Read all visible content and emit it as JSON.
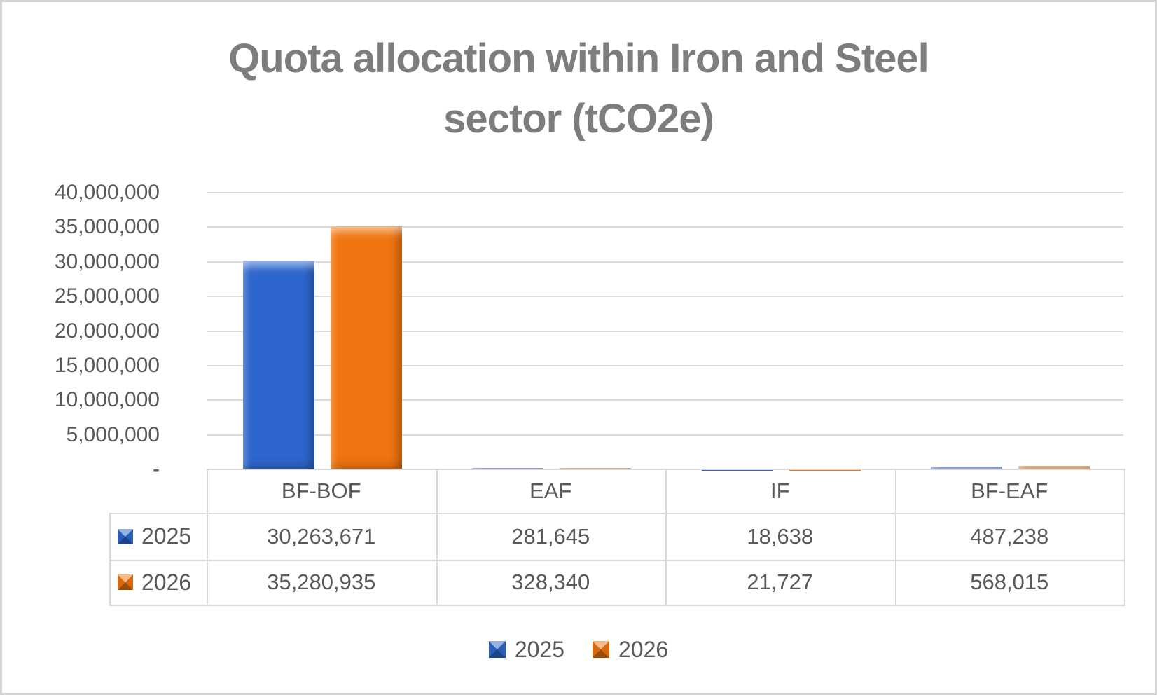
{
  "title": {
    "line1": "Quota allocation within Iron and Steel",
    "line2": "sector (tCO2e)"
  },
  "chart_data": {
    "type": "bar",
    "title": "Quota allocation within Iron and Steel sector (tCO2e)",
    "categories": [
      "BF-BOF",
      "EAF",
      "IF",
      "BF-EAF"
    ],
    "series": [
      {
        "name": "2025",
        "color": "#2d66cc",
        "values": [
          30263671,
          281645,
          18638,
          487238
        ]
      },
      {
        "name": "2026",
        "color": "#f0740f",
        "values": [
          35280935,
          328340,
          21727,
          568015
        ]
      }
    ],
    "value_labels": [
      [
        "30,263,671",
        "281,645",
        "18,638",
        "487,238"
      ],
      [
        "35,280,935",
        "328,340",
        "21,727",
        "568,015"
      ]
    ],
    "ylim": [
      0,
      40000000
    ],
    "ytick_step": 5000000,
    "ytick_labels": [
      "-",
      "5,000,000",
      "10,000,000",
      "15,000,000",
      "20,000,000",
      "25,000,000",
      "30,000,000",
      "35,000,000",
      "40,000,000"
    ],
    "zero_label": "-",
    "grid": true,
    "legend_position": "bottom",
    "data_table": true
  },
  "legend": {
    "items": [
      {
        "label": "2025",
        "color": "#2d66cc"
      },
      {
        "label": "2026",
        "color": "#f0740f"
      }
    ]
  },
  "colors": {
    "title_text": "#7d7d7d",
    "axis_text": "#595959",
    "gridline": "#dcdcdc",
    "table_border": "#d9d9d9",
    "series_2025": "#2d66cc",
    "series_2026": "#f0740f"
  }
}
